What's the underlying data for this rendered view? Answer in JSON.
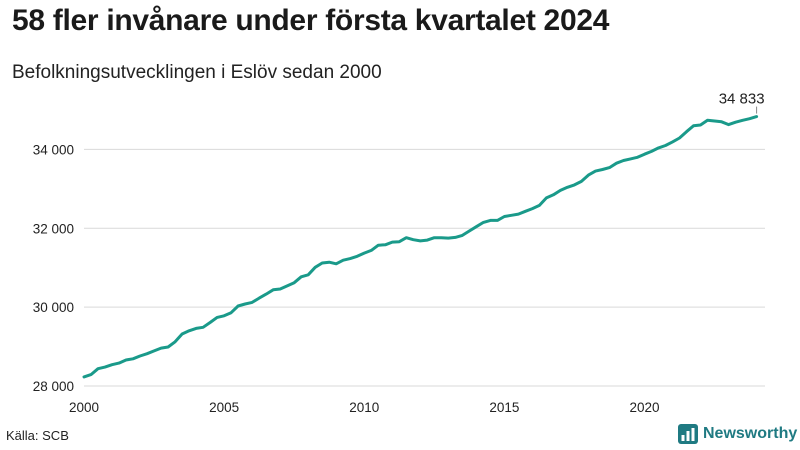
{
  "header": {
    "title": "58 fler invånare under första kvartalet 2024",
    "subtitle": "Befolkningsutvecklingen i Eslöv sedan 2000"
  },
  "footer": {
    "source": "Källa: SCB",
    "brand": "Newsworthy"
  },
  "colors": {
    "line": "#1a9a8a",
    "grid": "#d9d9d9",
    "brand": "#1f7a82"
  },
  "chart_data": {
    "type": "line",
    "title": "58 fler invånare under första kvartalet 2024",
    "subtitle": "Befolkningsutvecklingen i Eslöv sedan 2000",
    "xlabel": "",
    "ylabel": "",
    "xlim": [
      2000,
      2024.3
    ],
    "ylim": [
      28000,
      35000
    ],
    "x_ticks": [
      2000,
      2005,
      2010,
      2015,
      2020
    ],
    "x_tick_labels": [
      "2000",
      "2005",
      "2010",
      "2015",
      "2020"
    ],
    "y_ticks": [
      28000,
      30000,
      32000,
      34000
    ],
    "y_tick_labels": [
      "28 000",
      "30 000",
      "32 000",
      "34 000"
    ],
    "grid": "horizontal",
    "annotation": {
      "text": "34 833",
      "x": 2024.0,
      "y": 34833
    },
    "series": [
      {
        "name": "Befolkning",
        "frequency": "quarterly",
        "start": 2000.0,
        "step": 0.25,
        "values": [
          28230,
          28290,
          28440,
          28480,
          28540,
          28580,
          28660,
          28690,
          28760,
          28820,
          28890,
          28960,
          28990,
          29120,
          29320,
          29400,
          29460,
          29490,
          29610,
          29740,
          29780,
          29860,
          30030,
          30080,
          30120,
          30230,
          30330,
          30440,
          30460,
          30540,
          30620,
          30770,
          30820,
          31010,
          31120,
          31140,
          31100,
          31190,
          31230,
          31290,
          31370,
          31440,
          31570,
          31580,
          31650,
          31660,
          31760,
          31710,
          31680,
          31700,
          31760,
          31760,
          31750,
          31770,
          31820,
          31930,
          32040,
          32150,
          32200,
          32200,
          32300,
          32330,
          32360,
          32430,
          32500,
          32580,
          32770,
          32850,
          32960,
          33040,
          33100,
          33190,
          33350,
          33450,
          33490,
          33540,
          33650,
          33720,
          33760,
          33800,
          33880,
          33950,
          34040,
          34100,
          34190,
          34290,
          34450,
          34600,
          34620,
          34740,
          34720,
          34700,
          34630,
          34690,
          34740,
          34780,
          34833
        ]
      }
    ]
  }
}
